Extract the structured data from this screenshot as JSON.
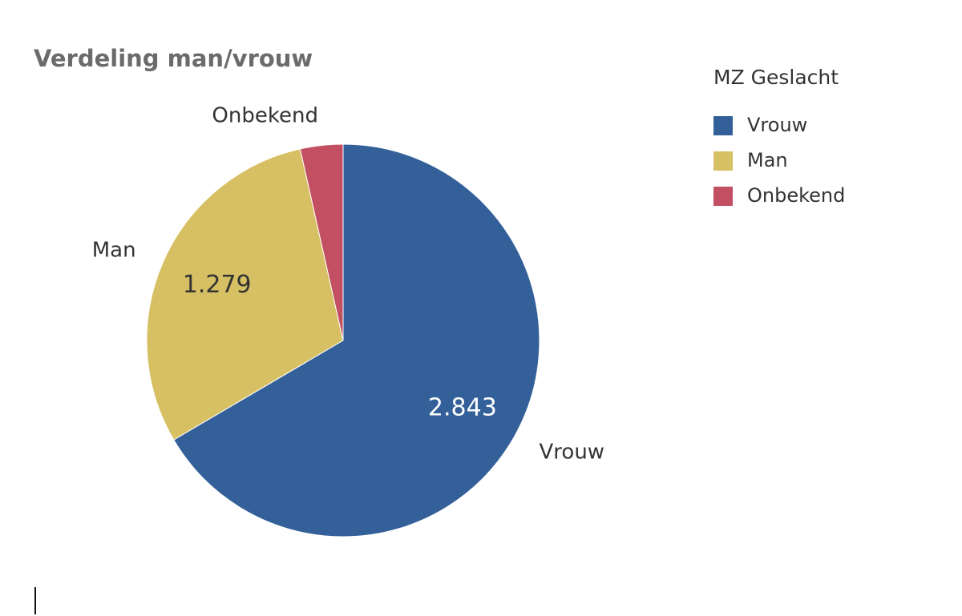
{
  "chart_data": {
    "type": "pie",
    "title": "Verdeling man/vrouw",
    "categories": [
      "Vrouw",
      "Man",
      "Onbekend"
    ],
    "values": [
      2843,
      1279,
      150
    ],
    "value_labels": [
      "2.843",
      "1.279",
      null
    ],
    "colors": [
      "#34609a",
      "#d6c063",
      "#c34f63"
    ],
    "legend_title": "MZ Geslacht",
    "legend": "top-right"
  }
}
